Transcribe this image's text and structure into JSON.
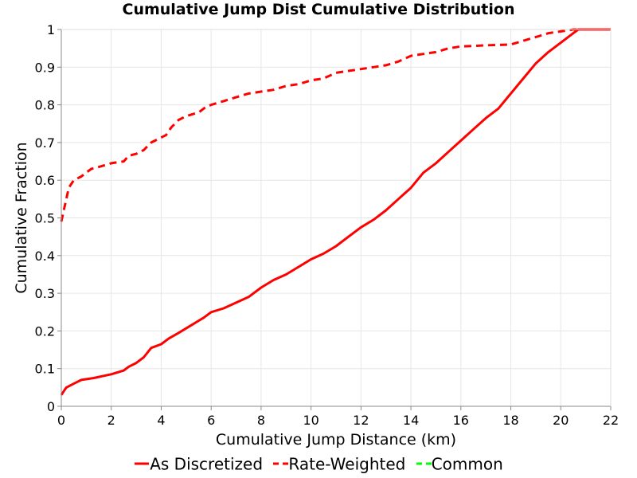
{
  "chart_data": {
    "type": "line",
    "title": "Cumulative Jump Dist Cumulative Distribution",
    "xlabel": "Cumulative Jump Distance (km)",
    "ylabel": "Cumulative Fraction",
    "xlim": [
      0,
      22
    ],
    "ylim": [
      0,
      1
    ],
    "xticks": [
      "0",
      "2",
      "4",
      "6",
      "8",
      "10",
      "12",
      "14",
      "16",
      "18",
      "20",
      "22"
    ],
    "yticks": [
      "0",
      "0.1",
      "0.2",
      "0.3",
      "0.4",
      "0.5",
      "0.6",
      "0.7",
      "0.8",
      "0.9",
      "1"
    ],
    "grid": true,
    "legend_position": "bottom",
    "series": [
      {
        "name": "As Discretized",
        "style": "solid",
        "color": "#ff0000",
        "x": [
          0,
          0.1,
          0.2,
          0.5,
          0.8,
          1.3,
          2.0,
          2.5,
          2.7,
          3.0,
          3.3,
          3.6,
          4.0,
          4.3,
          4.7,
          5.2,
          5.7,
          6.0,
          6.5,
          7.0,
          7.5,
          8.0,
          8.5,
          9.0,
          9.5,
          10.0,
          10.5,
          11.0,
          11.5,
          12.0,
          12.5,
          13.0,
          13.5,
          14.0,
          14.5,
          15.0,
          15.5,
          16.0,
          16.5,
          17.0,
          17.5,
          18.0,
          18.5,
          19.0,
          19.5,
          20.0,
          20.4,
          20.7,
          21.0,
          22.0
        ],
        "y": [
          0.03,
          0.04,
          0.05,
          0.06,
          0.07,
          0.075,
          0.085,
          0.095,
          0.105,
          0.115,
          0.13,
          0.155,
          0.165,
          0.18,
          0.195,
          0.215,
          0.235,
          0.25,
          0.26,
          0.275,
          0.29,
          0.315,
          0.335,
          0.35,
          0.37,
          0.39,
          0.405,
          0.425,
          0.45,
          0.475,
          0.495,
          0.52,
          0.55,
          0.58,
          0.62,
          0.645,
          0.675,
          0.705,
          0.735,
          0.765,
          0.79,
          0.83,
          0.87,
          0.91,
          0.94,
          0.965,
          0.985,
          1.0,
          1.0,
          1.0
        ]
      },
      {
        "name": "Rate-Weighted",
        "style": "dashed",
        "color": "#ff0000",
        "x": [
          0,
          0.1,
          0.2,
          0.3,
          0.5,
          0.8,
          1.0,
          1.2,
          1.5,
          2.0,
          2.5,
          2.7,
          3.0,
          3.3,
          3.6,
          3.9,
          4.2,
          4.4,
          4.7,
          5.0,
          5.5,
          5.8,
          6.0,
          6.5,
          7.0,
          7.5,
          8.0,
          8.5,
          9.0,
          9.5,
          10.0,
          10.5,
          11.0,
          11.5,
          12.0,
          12.5,
          13.0,
          13.5,
          14.0,
          14.5,
          15.0,
          15.5,
          16.0,
          17.0,
          18.0,
          18.5,
          19.0,
          19.5,
          20.0,
          20.5,
          21.0,
          22.0
        ],
        "y": [
          0.49,
          0.52,
          0.55,
          0.58,
          0.6,
          0.61,
          0.62,
          0.63,
          0.635,
          0.645,
          0.65,
          0.665,
          0.67,
          0.68,
          0.7,
          0.71,
          0.72,
          0.74,
          0.76,
          0.77,
          0.78,
          0.795,
          0.8,
          0.81,
          0.82,
          0.83,
          0.835,
          0.84,
          0.85,
          0.855,
          0.865,
          0.87,
          0.885,
          0.89,
          0.895,
          0.9,
          0.905,
          0.915,
          0.93,
          0.935,
          0.94,
          0.95,
          0.955,
          0.958,
          0.96,
          0.97,
          0.98,
          0.99,
          0.995,
          1.0,
          1.0,
          1.0
        ]
      },
      {
        "name": "Common",
        "style": "dashed",
        "color": "#00ff00",
        "x": [],
        "y": []
      }
    ]
  }
}
